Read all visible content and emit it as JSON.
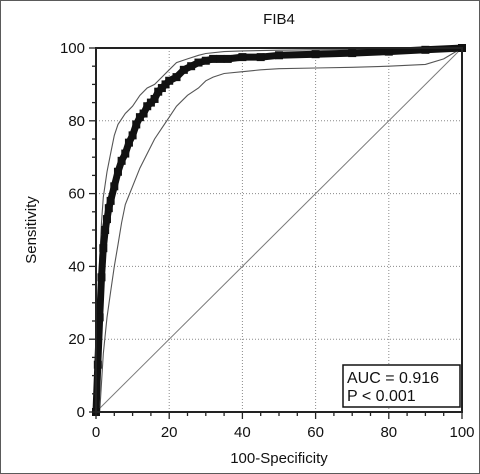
{
  "chart_data": {
    "type": "line",
    "title": "FIB4",
    "xlabel": "100-Specificity",
    "ylabel": "Sensitivity",
    "xlim": [
      0,
      100
    ],
    "ylim": [
      0,
      100
    ],
    "xticks": [
      "0",
      "20",
      "40",
      "60",
      "80",
      "100"
    ],
    "yticks": [
      "0",
      "20",
      "40",
      "60",
      "80",
      "100"
    ],
    "grid": true,
    "annotation": [
      "AUC = 0.916",
      "P < 0.001"
    ],
    "series": [
      {
        "role": "roc-curve",
        "x": [
          0,
          0.5,
          1,
          1.5,
          2,
          2.5,
          3,
          3.5,
          4,
          5,
          6,
          7,
          8,
          9,
          10,
          11,
          12,
          13,
          14,
          15,
          16,
          17,
          18,
          19,
          20,
          22,
          24,
          26,
          28,
          30,
          32,
          34,
          36,
          40,
          45,
          50,
          60,
          70,
          80,
          90,
          100
        ],
        "y": [
          0,
          13,
          26,
          37,
          45,
          50,
          53,
          56,
          58,
          62,
          66,
          69,
          71,
          74,
          76,
          79,
          81,
          82,
          84,
          85,
          86,
          88,
          89,
          90,
          91,
          92,
          94,
          95,
          96,
          96.5,
          97,
          97,
          97,
          97.5,
          97.5,
          98,
          98.3,
          98.6,
          99,
          99.5,
          100
        ]
      },
      {
        "role": "upper-confidence-bound",
        "x": [
          0,
          0.5,
          1,
          1.5,
          2,
          3,
          4,
          5,
          6,
          8,
          10,
          12,
          14,
          16,
          18,
          20,
          22,
          25,
          28,
          30,
          35,
          40,
          50,
          60,
          70,
          80,
          90,
          100
        ],
        "y": [
          0,
          28,
          42,
          52,
          59,
          66,
          71,
          76,
          79,
          82,
          84,
          87,
          89,
          90,
          92,
          94,
          96,
          97,
          98,
          98.5,
          99,
          99.2,
          99.4,
          99.5,
          99.6,
          99.7,
          99.8,
          100
        ]
      },
      {
        "role": "lower-confidence-bound",
        "x": [
          0,
          1,
          2,
          3,
          4,
          5,
          6,
          7,
          8,
          10,
          12,
          14,
          16,
          18,
          20,
          22,
          25,
          28,
          30,
          32,
          35,
          40,
          45,
          50,
          60,
          70,
          80,
          90,
          95,
          100
        ],
        "y": [
          0,
          0,
          16,
          26,
          33,
          40,
          46,
          52,
          57,
          62,
          67,
          71,
          75,
          78,
          81,
          84,
          87,
          89,
          91,
          92,
          93,
          93.5,
          94,
          94.3,
          94.5,
          94.7,
          95,
          95.5,
          97,
          100
        ]
      },
      {
        "role": "reference-diagonal",
        "x": [
          0,
          100
        ],
        "y": [
          0,
          100
        ]
      }
    ]
  }
}
